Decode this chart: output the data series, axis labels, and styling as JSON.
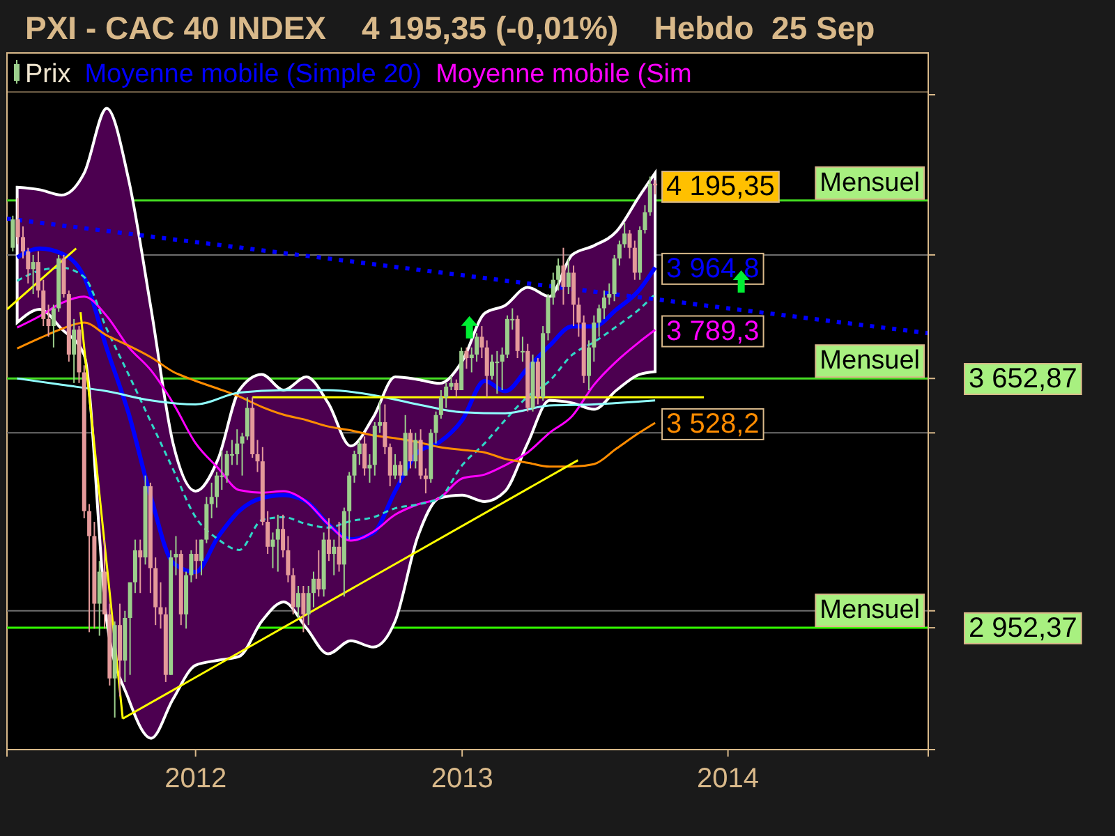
{
  "chart_data": {
    "type": "candlestick",
    "title": "PXI - CAC 40 INDEX    4 195,35 (-0,01%)    Hebdo  25 Sep",
    "xlim": [
      "2011-04-17",
      "2014-10-03"
    ],
    "xticks": [
      "2012",
      "2013",
      "2014"
    ],
    "ylim": [
      2610,
      4450
    ],
    "yticks": [
      {
        "value": 3000,
        "label": null
      },
      {
        "value": 3500,
        "label": null
      },
      {
        "value": 4000,
        "label": null
      },
      {
        "value": 3652.87,
        "label": "3 652,87"
      },
      {
        "value": 2952.37,
        "label": "2 952,37"
      }
    ],
    "grid": "y",
    "legend": "top left",
    "marker": "none",
    "ref_lines": [
      {
        "axis": "y",
        "value": 4153,
        "label": "Mensuel",
        "color": "#44dd22"
      },
      {
        "axis": "y",
        "value": 3652.87,
        "label": "Mensuel",
        "color": "#44dd22"
      },
      {
        "axis": "y",
        "value": 2952.37,
        "label": "Mensuel",
        "color": "#33ff00"
      }
    ],
    "annotations": [
      {
        "text": "4 195,35",
        "x": "2013-09-23",
        "y": 4195.35
      }
    ],
    "series": [
      {
        "name": "Prix",
        "x": [
          "2011-04-25",
          "2011-05-02",
          "2011-05-09",
          "2011-05-16",
          "2011-05-23",
          "2011-05-30",
          "2011-06-06",
          "2011-06-13",
          "2011-06-20",
          "2011-06-27",
          "2011-07-04",
          "2011-07-11",
          "2011-07-18",
          "2011-07-25",
          "2011-08-01",
          "2011-08-08",
          "2011-08-15",
          "2011-08-22",
          "2011-08-29",
          "2011-09-05",
          "2011-09-12",
          "2011-09-19",
          "2011-09-26",
          "2011-10-03",
          "2011-10-10",
          "2011-10-17",
          "2011-10-24",
          "2011-10-31",
          "2011-11-07",
          "2011-11-14",
          "2011-11-21",
          "2011-11-28",
          "2011-12-05",
          "2011-12-12",
          "2011-12-19",
          "2011-12-26",
          "2012-01-02",
          "2012-01-09",
          "2012-01-16",
          "2012-01-23",
          "2012-01-30",
          "2012-02-06",
          "2012-02-13",
          "2012-02-20",
          "2012-02-27",
          "2012-03-05",
          "2012-03-12",
          "2012-03-19",
          "2012-03-26",
          "2012-04-02",
          "2012-04-09",
          "2012-04-16",
          "2012-04-23",
          "2012-04-30",
          "2012-05-07",
          "2012-05-14",
          "2012-05-21",
          "2012-05-28",
          "2012-06-04",
          "2012-06-11",
          "2012-06-18",
          "2012-06-25",
          "2012-07-02",
          "2012-07-09",
          "2012-07-16",
          "2012-07-23",
          "2012-07-30",
          "2012-08-06",
          "2012-08-13",
          "2012-08-20",
          "2012-08-27",
          "2012-09-03",
          "2012-09-10",
          "2012-09-17",
          "2012-09-24",
          "2012-10-01",
          "2012-10-08",
          "2012-10-15",
          "2012-10-22",
          "2012-10-29",
          "2012-11-05",
          "2012-11-12",
          "2012-11-19",
          "2012-11-26",
          "2012-12-03",
          "2012-12-10",
          "2012-12-17",
          "2012-12-24",
          "2012-12-31",
          "2013-01-07",
          "2013-01-14",
          "2013-01-21",
          "2013-01-28",
          "2013-02-04",
          "2013-02-11",
          "2013-02-18",
          "2013-02-25",
          "2013-03-04",
          "2013-03-11",
          "2013-03-18",
          "2013-03-25",
          "2013-04-01",
          "2013-04-08",
          "2013-04-15",
          "2013-04-22",
          "2013-04-29",
          "2013-05-06",
          "2013-05-13",
          "2013-05-20",
          "2013-05-27",
          "2013-06-03",
          "2013-06-10",
          "2013-06-17",
          "2013-06-24",
          "2013-07-01",
          "2013-07-08",
          "2013-07-15",
          "2013-07-22",
          "2013-07-29",
          "2013-08-05",
          "2013-08-12",
          "2013-08-19",
          "2013-08-26",
          "2013-09-02",
          "2013-09-09",
          "2013-09-16",
          "2013-09-23"
        ],
        "ohlc": [
          [
            4020,
            4110,
            4010,
            4100
          ],
          [
            4100,
            4160,
            4030,
            4050
          ],
          [
            4050,
            4080,
            3990,
            4010
          ],
          [
            4010,
            4020,
            3920,
            3960
          ],
          [
            3960,
            4000,
            3890,
            3980
          ],
          [
            3980,
            4010,
            3880,
            3900
          ],
          [
            3900,
            3930,
            3800,
            3820
          ],
          [
            3820,
            3860,
            3770,
            3800
          ],
          [
            3800,
            3860,
            3740,
            3850
          ],
          [
            3850,
            4000,
            3840,
            3990
          ],
          [
            3990,
            4000,
            3880,
            3890
          ],
          [
            3890,
            3900,
            3700,
            3720
          ],
          [
            3720,
            3820,
            3640,
            3790
          ],
          [
            3790,
            3800,
            3640,
            3670
          ],
          [
            3670,
            3690,
            3260,
            3280
          ],
          [
            3280,
            3300,
            2940,
            3210
          ],
          [
            3210,
            3250,
            2950,
            3020
          ],
          [
            3020,
            3140,
            2930,
            3110
          ],
          [
            3110,
            3200,
            2950,
            2990
          ],
          [
            2990,
            3020,
            2790,
            2810
          ],
          [
            2810,
            2970,
            2700,
            2960
          ],
          [
            2960,
            3020,
            2760,
            2860
          ],
          [
            2860,
            3000,
            2800,
            2980
          ],
          [
            2980,
            3080,
            2820,
            3080
          ],
          [
            3080,
            3200,
            3050,
            3170
          ],
          [
            3170,
            3200,
            3050,
            3150
          ],
          [
            3150,
            3380,
            3130,
            3350
          ],
          [
            3350,
            3360,
            3050,
            3120
          ],
          [
            3120,
            3150,
            2960,
            3010
          ],
          [
            3010,
            3080,
            2950,
            2990
          ],
          [
            2990,
            3010,
            2800,
            2820
          ],
          [
            2820,
            3170,
            2820,
            3150
          ],
          [
            3150,
            3210,
            3100,
            3160
          ],
          [
            3160,
            3170,
            2960,
            2990
          ],
          [
            2990,
            3110,
            2950,
            3100
          ],
          [
            3100,
            3170,
            3080,
            3160
          ],
          [
            3160,
            3200,
            3090,
            3140
          ],
          [
            3140,
            3200,
            3100,
            3200
          ],
          [
            3200,
            3320,
            3190,
            3300
          ],
          [
            3300,
            3360,
            3260,
            3320
          ],
          [
            3320,
            3390,
            3290,
            3380
          ],
          [
            3380,
            3450,
            3340,
            3380
          ],
          [
            3380,
            3450,
            3360,
            3440
          ],
          [
            3440,
            3480,
            3410,
            3440
          ],
          [
            3440,
            3510,
            3410,
            3470
          ],
          [
            3470,
            3500,
            3380,
            3490
          ],
          [
            3490,
            3600,
            3480,
            3570
          ],
          [
            3570,
            3600,
            3430,
            3440
          ],
          [
            3440,
            3480,
            3390,
            3420
          ],
          [
            3420,
            3460,
            3240,
            3250
          ],
          [
            3250,
            3280,
            3160,
            3180
          ],
          [
            3180,
            3220,
            3120,
            3200
          ],
          [
            3200,
            3270,
            3110,
            3230
          ],
          [
            3230,
            3270,
            3150,
            3170
          ],
          [
            3170,
            3210,
            3080,
            3100
          ],
          [
            3100,
            3120,
            2990,
            3010
          ],
          [
            3010,
            3070,
            2980,
            3050
          ],
          [
            3050,
            3070,
            2940,
            2990
          ],
          [
            2990,
            3070,
            2960,
            3050
          ],
          [
            3050,
            3110,
            3010,
            3090
          ],
          [
            3090,
            3170,
            3040,
            3060
          ],
          [
            3060,
            3220,
            3040,
            3200
          ],
          [
            3200,
            3260,
            3140,
            3160
          ],
          [
            3160,
            3200,
            3100,
            3180
          ],
          [
            3180,
            3250,
            3110,
            3130
          ],
          [
            3130,
            3290,
            3040,
            3280
          ],
          [
            3280,
            3390,
            3200,
            3380
          ],
          [
            3380,
            3450,
            3360,
            3440
          ],
          [
            3440,
            3480,
            3410,
            3470
          ],
          [
            3470,
            3490,
            3380,
            3400
          ],
          [
            3400,
            3440,
            3360,
            3410
          ],
          [
            3410,
            3530,
            3380,
            3520
          ],
          [
            3520,
            3590,
            3500,
            3530
          ],
          [
            3530,
            3580,
            3440,
            3460
          ],
          [
            3460,
            3470,
            3350,
            3380
          ],
          [
            3380,
            3440,
            3370,
            3410
          ],
          [
            3410,
            3420,
            3360,
            3380
          ],
          [
            3380,
            3550,
            3380,
            3500
          ],
          [
            3500,
            3510,
            3400,
            3420
          ],
          [
            3420,
            3500,
            3400,
            3480
          ],
          [
            3480,
            3510,
            3370,
            3380
          ],
          [
            3380,
            3400,
            3330,
            3370
          ],
          [
            3370,
            3510,
            3360,
            3500
          ],
          [
            3500,
            3560,
            3470,
            3550
          ],
          [
            3550,
            3620,
            3540,
            3600
          ],
          [
            3600,
            3640,
            3570,
            3630
          ],
          [
            3630,
            3660,
            3620,
            3640
          ],
          [
            3640,
            3650,
            3600,
            3620
          ],
          [
            3620,
            3740,
            3620,
            3730
          ],
          [
            3730,
            3740,
            3680,
            3710
          ],
          [
            3710,
            3740,
            3670,
            3720
          ],
          [
            3720,
            3780,
            3700,
            3770
          ],
          [
            3770,
            3800,
            3710,
            3740
          ],
          [
            3740,
            3760,
            3600,
            3660
          ],
          [
            3660,
            3720,
            3650,
            3700
          ],
          [
            3700,
            3730,
            3610,
            3700
          ],
          [
            3700,
            3740,
            3620,
            3720
          ],
          [
            3720,
            3830,
            3710,
            3820
          ],
          [
            3820,
            3850,
            3790,
            3820
          ],
          [
            3820,
            3830,
            3710,
            3730
          ],
          [
            3730,
            3770,
            3700,
            3730
          ],
          [
            3730,
            3750,
            3560,
            3570
          ],
          [
            3570,
            3720,
            3560,
            3700
          ],
          [
            3700,
            3710,
            3580,
            3600
          ],
          [
            3600,
            3800,
            3590,
            3780
          ],
          [
            3780,
            3890,
            3760,
            3880
          ],
          [
            3880,
            3950,
            3860,
            3930
          ],
          [
            3930,
            3990,
            3900,
            3970
          ],
          [
            3970,
            4020,
            3860,
            3910
          ],
          [
            3910,
            3990,
            3890,
            3950
          ],
          [
            3950,
            3970,
            3800,
            3860
          ],
          [
            3860,
            3880,
            3770,
            3810
          ],
          [
            3810,
            3830,
            3640,
            3660
          ],
          [
            3660,
            3760,
            3620,
            3740
          ],
          [
            3740,
            3830,
            3700,
            3810
          ],
          [
            3810,
            3860,
            3770,
            3850
          ],
          [
            3850,
            3900,
            3820,
            3880
          ],
          [
            3880,
            3920,
            3860,
            3890
          ],
          [
            3890,
            4000,
            3870,
            3990
          ],
          [
            3990,
            4040,
            3970,
            4030
          ],
          [
            4030,
            4090,
            4020,
            4060
          ],
          [
            4060,
            4070,
            3990,
            4020
          ],
          [
            4020,
            4040,
            3930,
            3950
          ],
          [
            3950,
            4080,
            3930,
            4070
          ],
          [
            4070,
            4140,
            4060,
            4120
          ],
          [
            4120,
            4220,
            4110,
            4200
          ],
          [
            4200,
            4210,
            4170,
            4195.35
          ]
        ]
      },
      {
        "name": "Moyenne mobile (Simple 20)",
        "type": "line",
        "color": "#0000ff",
        "x": [
          "2011-05-01",
          "2011-06-01",
          "2011-07-01",
          "2011-08-01",
          "2011-09-01",
          "2011-10-01",
          "2011-11-01",
          "2011-12-01",
          "2012-01-01",
          "2012-02-01",
          "2012-03-01",
          "2012-04-01",
          "2012-05-01",
          "2012-06-01",
          "2012-07-01",
          "2012-08-01",
          "2012-09-01",
          "2012-10-01",
          "2012-11-01",
          "2012-12-01",
          "2013-01-01",
          "2013-02-01",
          "2013-03-01",
          "2013-04-01",
          "2013-05-01",
          "2013-06-01",
          "2013-07-01",
          "2013-08-01",
          "2013-09-01",
          "2013-09-23"
        ],
        "values": [
          3993,
          4018,
          4004,
          3938,
          3737,
          3555,
          3317,
          3135,
          3109,
          3208,
          3281,
          3317,
          3325,
          3307,
          3244,
          3201,
          3219,
          3336,
          3445,
          3474,
          3536,
          3646,
          3617,
          3682,
          3745,
          3799,
          3799,
          3847,
          3901,
          3964.8
        ],
        "upper": [
          4190,
          4183,
          4168,
          4230,
          4412,
          4212,
          3847,
          3471,
          3336,
          3427,
          3620,
          3664,
          3620,
          3657,
          3584,
          3463,
          3544,
          3657,
          3650,
          3639,
          3701,
          3836,
          3858,
          3909,
          3883,
          4000,
          4026,
          4066,
          4164,
          4230
        ],
        "lower": [
          3810,
          3847,
          3792,
          3719,
          2971,
          2752,
          2642,
          2752,
          2847,
          2861,
          2872,
          2971,
          3025,
          2952,
          2879,
          2916,
          2898,
          2971,
          3208,
          3317,
          3325,
          3307,
          3336,
          3471,
          3591,
          3584,
          3566,
          3620,
          3664,
          3672
        ],
        "value_labels": [
          null,
          null,
          null,
          null,
          null,
          null,
          null,
          null,
          null,
          null,
          null,
          null,
          null,
          null,
          null,
          null,
          null,
          null,
          null,
          null,
          null,
          null,
          null,
          null,
          null,
          null,
          null,
          null,
          null,
          "3 964,8"
        ]
      },
      {
        "name": "Moyenne mobile (Sim",
        "type": "line",
        "color": "#ff00ff",
        "x": [
          "2011-05-01",
          "2011-06-01",
          "2011-07-01",
          "2011-08-01",
          "2011-09-01",
          "2011-10-01",
          "2011-11-01",
          "2011-12-01",
          "2012-01-01",
          "2012-02-01",
          "2012-03-01",
          "2012-04-01",
          "2012-05-01",
          "2012-06-01",
          "2012-07-01",
          "2012-08-01",
          "2012-09-01",
          "2012-10-01",
          "2012-11-01",
          "2012-12-01",
          "2013-01-01",
          "2013-02-01",
          "2013-03-01",
          "2013-04-01",
          "2013-05-01",
          "2013-06-01",
          "2013-07-01",
          "2013-08-01",
          "2013-09-01",
          "2013-09-23"
        ],
        "values": [
          3796,
          3828,
          3865,
          3883,
          3828,
          3741,
          3675,
          3584,
          3471,
          3401,
          3339,
          3332,
          3336,
          3307,
          3244,
          3197,
          3222,
          3270,
          3299,
          3317,
          3372,
          3383,
          3409,
          3445,
          3500,
          3547,
          3635,
          3701,
          3755,
          3789.3
        ],
        "value_labels": [
          null,
          null,
          null,
          null,
          null,
          null,
          null,
          null,
          null,
          null,
          null,
          null,
          null,
          null,
          null,
          null,
          null,
          null,
          null,
          null,
          null,
          null,
          null,
          null,
          null,
          null,
          null,
          null,
          null,
          "3 789,3"
        ]
      },
      {
        "type": "line",
        "color": "#30d8c8",
        "line_style": "dashed",
        "x": [
          "2011-05-01",
          "2011-06-01",
          "2011-07-01",
          "2011-08-01",
          "2011-09-01",
          "2011-10-01",
          "2011-11-01",
          "2011-12-01",
          "2012-01-01",
          "2012-02-01",
          "2012-03-01",
          "2012-04-01",
          "2012-05-01",
          "2012-06-01",
          "2012-07-01",
          "2012-08-01",
          "2012-09-01",
          "2012-10-01",
          "2012-11-01",
          "2012-12-01",
          "2013-01-01",
          "2013-02-01",
          "2013-03-01",
          "2013-04-01",
          "2013-05-01",
          "2013-06-01",
          "2013-07-01",
          "2013-08-01",
          "2013-09-01",
          "2013-09-23"
        ],
        "values": [
          3927,
          3956,
          3964,
          3938,
          3792,
          3664,
          3529,
          3398,
          3263,
          3201,
          3171,
          3255,
          3263,
          3244,
          3234,
          3252,
          3263,
          3288,
          3299,
          3317,
          3409,
          3471,
          3536,
          3602,
          3646,
          3719,
          3755,
          3799,
          3847,
          3890
        ]
      },
      {
        "type": "line",
        "color": "#ff8c00",
        "x": [
          "2011-05-01",
          "2011-06-01",
          "2011-07-01",
          "2011-08-01",
          "2011-09-01",
          "2011-10-01",
          "2011-11-01",
          "2011-12-01",
          "2012-01-01",
          "2012-02-01",
          "2012-03-01",
          "2012-04-01",
          "2012-05-01",
          "2012-06-01",
          "2012-07-01",
          "2012-08-01",
          "2012-09-01",
          "2012-10-01",
          "2012-11-01",
          "2012-12-01",
          "2013-01-01",
          "2013-02-01",
          "2013-03-01",
          "2013-04-01",
          "2013-05-01",
          "2013-06-01",
          "2013-07-01",
          "2013-08-01",
          "2013-09-01",
          "2013-09-23"
        ],
        "values": [
          3737,
          3766,
          3792,
          3810,
          3774,
          3745,
          3712,
          3672,
          3646,
          3624,
          3602,
          3573,
          3551,
          3536,
          3518,
          3507,
          3493,
          3485,
          3474,
          3460,
          3452,
          3445,
          3427,
          3416,
          3405,
          3405,
          3412,
          3456,
          3500,
          3528.2
        ],
        "value_labels": [
          null,
          null,
          null,
          null,
          null,
          null,
          null,
          null,
          null,
          null,
          null,
          null,
          null,
          null,
          null,
          null,
          null,
          null,
          null,
          null,
          null,
          null,
          null,
          null,
          null,
          null,
          null,
          null,
          null,
          "3 528,2"
        ]
      },
      {
        "type": "line",
        "color": "#90ffff",
        "x": [
          "2011-05-01",
          "2011-07-01",
          "2011-09-01",
          "2011-11-01",
          "2012-01-01",
          "2012-03-01",
          "2012-05-01",
          "2012-07-01",
          "2012-09-01",
          "2012-11-01",
          "2013-01-01",
          "2013-03-01",
          "2013-05-01",
          "2013-07-01",
          "2013-09-23"
        ],
        "values": [
          3653,
          3635,
          3617,
          3591,
          3580,
          3613,
          3620,
          3620,
          3606,
          3580,
          3558,
          3555,
          3577,
          3580,
          3591
        ]
      },
      {
        "type": "line",
        "color": "#0000ff",
        "line_style": "dotted",
        "x": [
          "2011-04-17",
          "2014-10-03"
        ],
        "values": [
          4102,
          3780
        ]
      },
      {
        "type": "line",
        "color": "#ffff00",
        "x": [
          "2011-04-17",
          "2011-07-21"
        ],
        "values": [
          3847,
          4018
        ]
      },
      {
        "type": "line",
        "color": "#ffff00",
        "x": [
          "2011-07-27",
          "2011-09-23"
        ],
        "values": [
          3839,
          2697
        ]
      },
      {
        "type": "line",
        "color": "#ffff00",
        "x": [
          "2011-09-23",
          "2013-06-09"
        ],
        "values": [
          2697,
          3423
        ]
      },
      {
        "type": "line",
        "color": "#ffff00",
        "x": [
          "2012-03-19",
          "2013-11-29"
        ],
        "values": [
          3600,
          3600
        ]
      }
    ]
  }
}
